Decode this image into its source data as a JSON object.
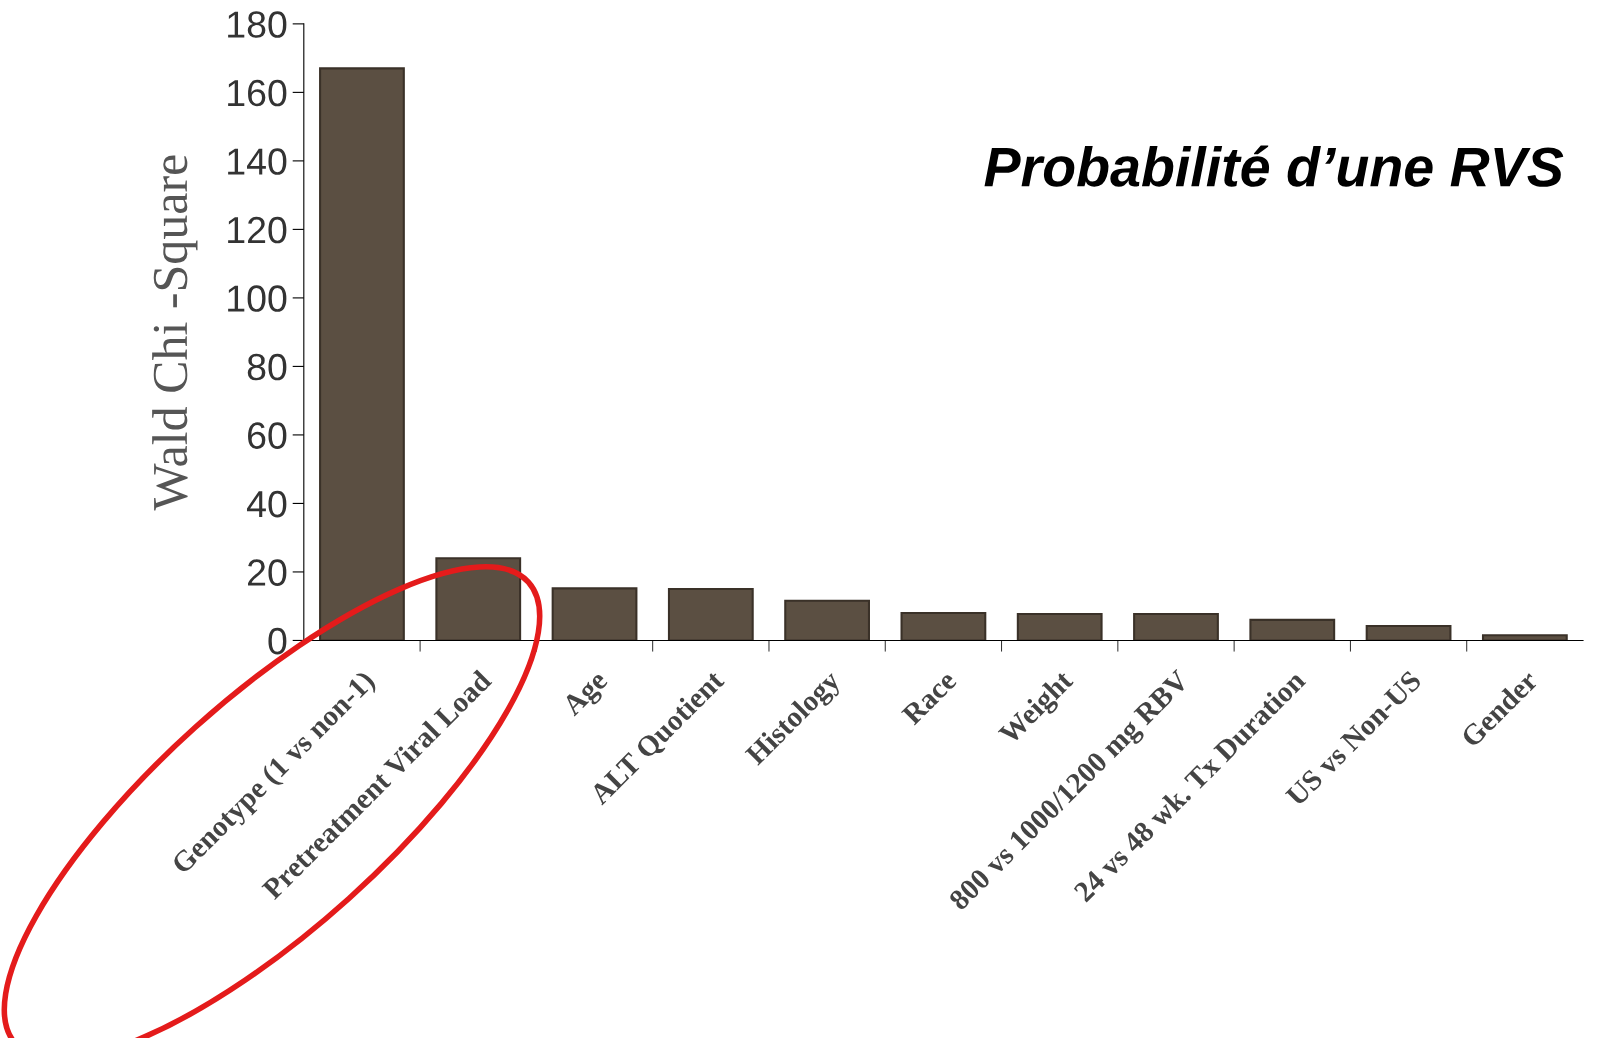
{
  "chart_data": {
    "type": "bar",
    "title": "Probabilité d’une RVS",
    "ylabel": "Wald Chi -Square",
    "categories": [
      "Genotype (1 vs non-1)",
      "Pretreatment Viral Load",
      "Age",
      "ALT Quotient",
      "Histology",
      "Race",
      "Weight",
      "800 vs 1000/1200 mg RBV",
      "24 vs 48 wk. Tx Duration",
      "US vs Non-US",
      "Gender"
    ],
    "values": [
      167,
      24,
      15.2,
      15,
      11.6,
      8,
      7.7,
      7.7,
      6,
      4.2,
      1.5
    ],
    "color": "#5b4f42",
    "ylim": [
      0,
      180
    ],
    "yticks": [
      0,
      20,
      40,
      60,
      80,
      100,
      120,
      140,
      160,
      180
    ],
    "grid": false,
    "legend": false
  }
}
